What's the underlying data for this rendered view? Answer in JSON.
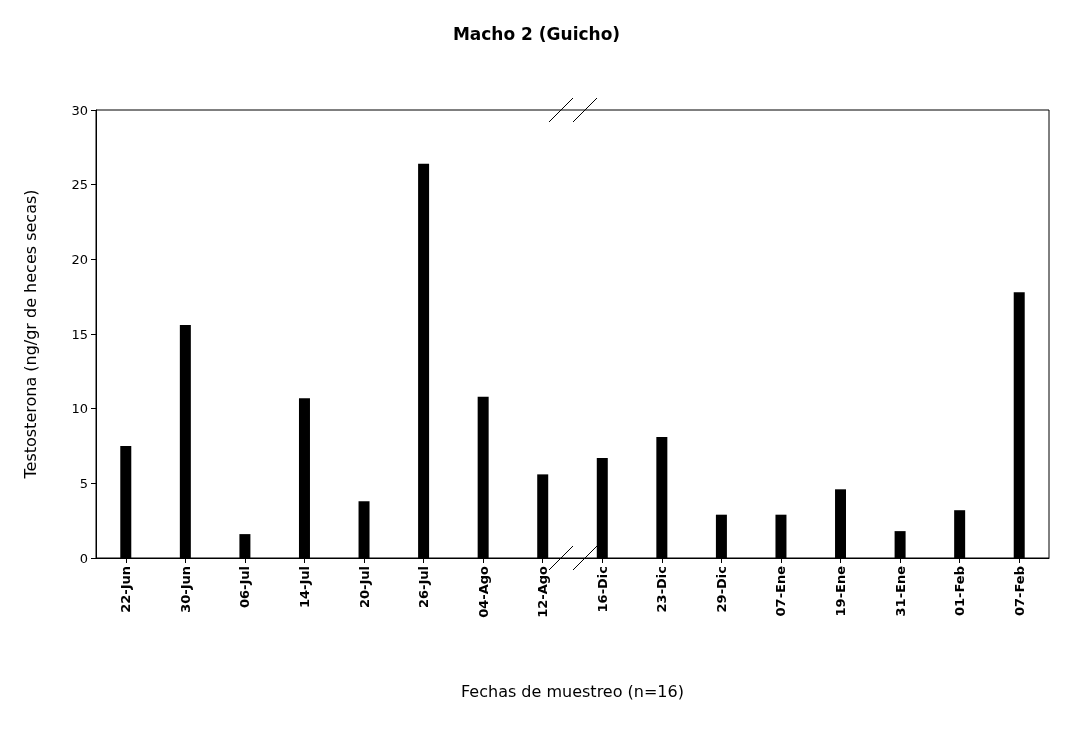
{
  "chart_data": {
    "type": "bar",
    "title": "Macho 2 (Guicho)",
    "xlabel": "Fechas de muestreo (n=16)",
    "ylabel": "Testosterona (ng/gr de heces secas)",
    "categories": [
      "22-Jun",
      "30-Jun",
      "06-Jul",
      "14-Jul",
      "20-Jul",
      "26-Jul",
      "04-Ago",
      "12-Ago",
      "16-Dic",
      "23-Dic",
      "29-Dic",
      "07-Ene",
      "19-Ene",
      "31-Ene",
      "01-Feb",
      "07-Feb"
    ],
    "values": [
      7.5,
      15.6,
      1.6,
      10.7,
      3.8,
      26.4,
      10.8,
      5.6,
      6.7,
      8.1,
      2.9,
      2.9,
      4.6,
      1.8,
      3.2,
      17.8
    ],
    "color": "#000000",
    "ylim": [
      0,
      30
    ],
    "yticks": [
      0,
      5,
      10,
      15,
      20,
      25,
      30
    ],
    "grid": false
  }
}
